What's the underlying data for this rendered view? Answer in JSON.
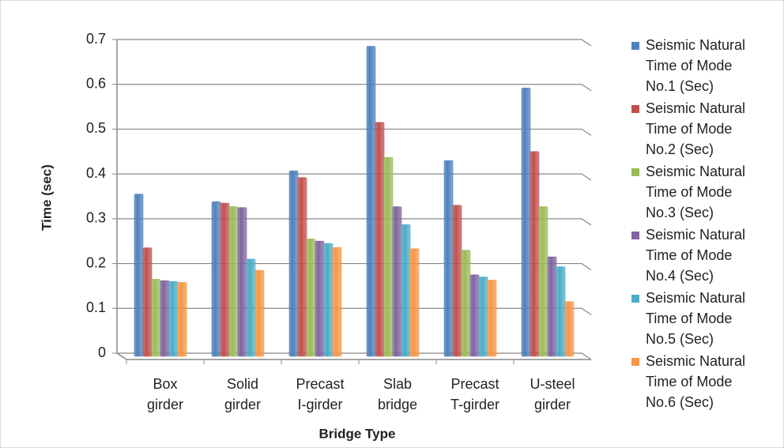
{
  "chart_data": {
    "type": "bar",
    "x_label": "Bridge Type",
    "y_label": "Time (sec)",
    "categories": [
      "Box girder",
      "Solid girder",
      "Precast I-girder",
      "Slab bridge",
      "Precast T-girder",
      "U-steel girder"
    ],
    "series": [
      {
        "name": "Seismic Natural Time of Mode No.1 (Sec)",
        "color": "#4f81bd",
        "values": [
          0.355,
          0.338,
          0.407,
          0.685,
          0.43,
          0.592
        ]
      },
      {
        "name": "Seismic Natural Time of Mode No.2 (Sec)",
        "color": "#c0504d",
        "values": [
          0.235,
          0.335,
          0.392,
          0.515,
          0.33,
          0.45
        ]
      },
      {
        "name": "Seismic Natural Time of Mode No.3 (Sec)",
        "color": "#9bbb59",
        "values": [
          0.165,
          0.327,
          0.255,
          0.437,
          0.23,
          0.327
        ]
      },
      {
        "name": "Seismic Natural Time of Mode No.4 (Sec)",
        "color": "#8064a2",
        "values": [
          0.162,
          0.325,
          0.25,
          0.327,
          0.175,
          0.215
        ]
      },
      {
        "name": "Seismic Natural Time of Mode No.5 (Sec)",
        "color": "#4bacc6",
        "values": [
          0.16,
          0.21,
          0.245,
          0.287,
          0.17,
          0.193
        ]
      },
      {
        "name": "Seismic Natural Time of Mode No.6 (Sec)",
        "color": "#f79646",
        "values": [
          0.158,
          0.185,
          0.236,
          0.233,
          0.163,
          0.115
        ]
      }
    ],
    "ylim": [
      0,
      0.7
    ],
    "yticks": [
      0,
      0.1,
      0.2,
      0.3,
      0.4,
      0.5,
      0.6,
      0.7
    ],
    "grid": true,
    "legend": "right"
  }
}
